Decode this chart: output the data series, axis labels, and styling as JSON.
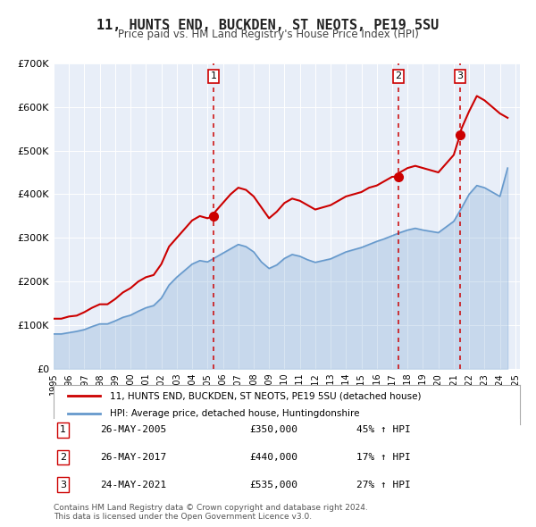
{
  "title": "11, HUNTS END, BUCKDEN, ST NEOTS, PE19 5SU",
  "subtitle": "Price paid vs. HM Land Registry's House Price Index (HPI)",
  "background_color": "#f0f4ff",
  "plot_bg_color": "#e8eef8",
  "red_line_color": "#cc0000",
  "blue_line_color": "#6699cc",
  "ylim": [
    0,
    700000
  ],
  "yticks": [
    0,
    100000,
    200000,
    300000,
    400000,
    500000,
    600000,
    700000
  ],
  "ytick_labels": [
    "£0",
    "£100K",
    "£200K",
    "£300K",
    "£400K",
    "£500K",
    "£600K",
    "£700K"
  ],
  "xlim_start": 1995.0,
  "xlim_end": 2025.3,
  "sale_dates": [
    2005.4,
    2017.4,
    2021.4
  ],
  "sale_prices": [
    350000,
    440000,
    535000
  ],
  "sale_labels": [
    "1",
    "2",
    "3"
  ],
  "legend_entries": [
    "11, HUNTS END, BUCKDEN, ST NEOTS, PE19 5SU (detached house)",
    "HPI: Average price, detached house, Huntingdonshire"
  ],
  "table_rows": [
    {
      "num": "1",
      "date": "26-MAY-2005",
      "price": "£350,000",
      "hpi": "45% ↑ HPI"
    },
    {
      "num": "2",
      "date": "26-MAY-2017",
      "price": "£440,000",
      "hpi": "17% ↑ HPI"
    },
    {
      "num": "3",
      "date": "24-MAY-2021",
      "price": "£535,000",
      "hpi": "27% ↑ HPI"
    }
  ],
  "footer": "Contains HM Land Registry data © Crown copyright and database right 2024.\nThis data is licensed under the Open Government Licence v3.0.",
  "red_hpi_data": {
    "years": [
      1995.0,
      1995.5,
      1996.0,
      1996.5,
      1997.0,
      1997.5,
      1998.0,
      1998.5,
      1999.0,
      1999.5,
      2000.0,
      2000.5,
      2001.0,
      2001.5,
      2002.0,
      2002.5,
      2003.0,
      2003.5,
      2004.0,
      2004.5,
      2005.0,
      2005.4,
      2005.5,
      2006.0,
      2006.5,
      2007.0,
      2007.5,
      2008.0,
      2008.5,
      2009.0,
      2009.5,
      2010.0,
      2010.5,
      2011.0,
      2011.5,
      2012.0,
      2012.5,
      2013.0,
      2013.5,
      2014.0,
      2014.5,
      2015.0,
      2015.5,
      2016.0,
      2016.5,
      2017.0,
      2017.4,
      2017.5,
      2018.0,
      2018.5,
      2019.0,
      2019.5,
      2020.0,
      2020.5,
      2021.0,
      2021.4,
      2021.5,
      2022.0,
      2022.5,
      2023.0,
      2023.5,
      2024.0,
      2024.5
    ],
    "values": [
      115000,
      115000,
      120000,
      122000,
      130000,
      140000,
      148000,
      148000,
      160000,
      175000,
      185000,
      200000,
      210000,
      215000,
      240000,
      280000,
      300000,
      320000,
      340000,
      350000,
      345000,
      350000,
      360000,
      380000,
      400000,
      415000,
      410000,
      395000,
      370000,
      345000,
      360000,
      380000,
      390000,
      385000,
      375000,
      365000,
      370000,
      375000,
      385000,
      395000,
      400000,
      405000,
      415000,
      420000,
      430000,
      440000,
      440000,
      450000,
      460000,
      465000,
      460000,
      455000,
      450000,
      470000,
      490000,
      535000,
      550000,
      590000,
      625000,
      615000,
      600000,
      585000,
      575000
    ]
  },
  "blue_hpi_data": {
    "years": [
      1995.0,
      1995.5,
      1996.0,
      1996.5,
      1997.0,
      1997.5,
      1998.0,
      1998.5,
      1999.0,
      1999.5,
      2000.0,
      2000.5,
      2001.0,
      2001.5,
      2002.0,
      2002.5,
      2003.0,
      2003.5,
      2004.0,
      2004.5,
      2005.0,
      2005.5,
      2006.0,
      2006.5,
      2007.0,
      2007.5,
      2008.0,
      2008.5,
      2009.0,
      2009.5,
      2010.0,
      2010.5,
      2011.0,
      2011.5,
      2012.0,
      2012.5,
      2013.0,
      2013.5,
      2014.0,
      2014.5,
      2015.0,
      2015.5,
      2016.0,
      2016.5,
      2017.0,
      2017.5,
      2018.0,
      2018.5,
      2019.0,
      2019.5,
      2020.0,
      2020.5,
      2021.0,
      2021.5,
      2022.0,
      2022.5,
      2023.0,
      2023.5,
      2024.0,
      2024.5
    ],
    "values": [
      80000,
      80000,
      83000,
      86000,
      90000,
      97000,
      103000,
      103000,
      110000,
      118000,
      123000,
      132000,
      140000,
      145000,
      162000,
      192000,
      210000,
      225000,
      240000,
      248000,
      245000,
      255000,
      265000,
      275000,
      285000,
      280000,
      268000,
      245000,
      230000,
      238000,
      253000,
      262000,
      258000,
      250000,
      244000,
      248000,
      252000,
      260000,
      268000,
      273000,
      278000,
      285000,
      292000,
      298000,
      305000,
      312000,
      318000,
      322000,
      318000,
      315000,
      312000,
      325000,
      338000,
      368000,
      400000,
      420000,
      415000,
      405000,
      395000,
      460000
    ]
  }
}
